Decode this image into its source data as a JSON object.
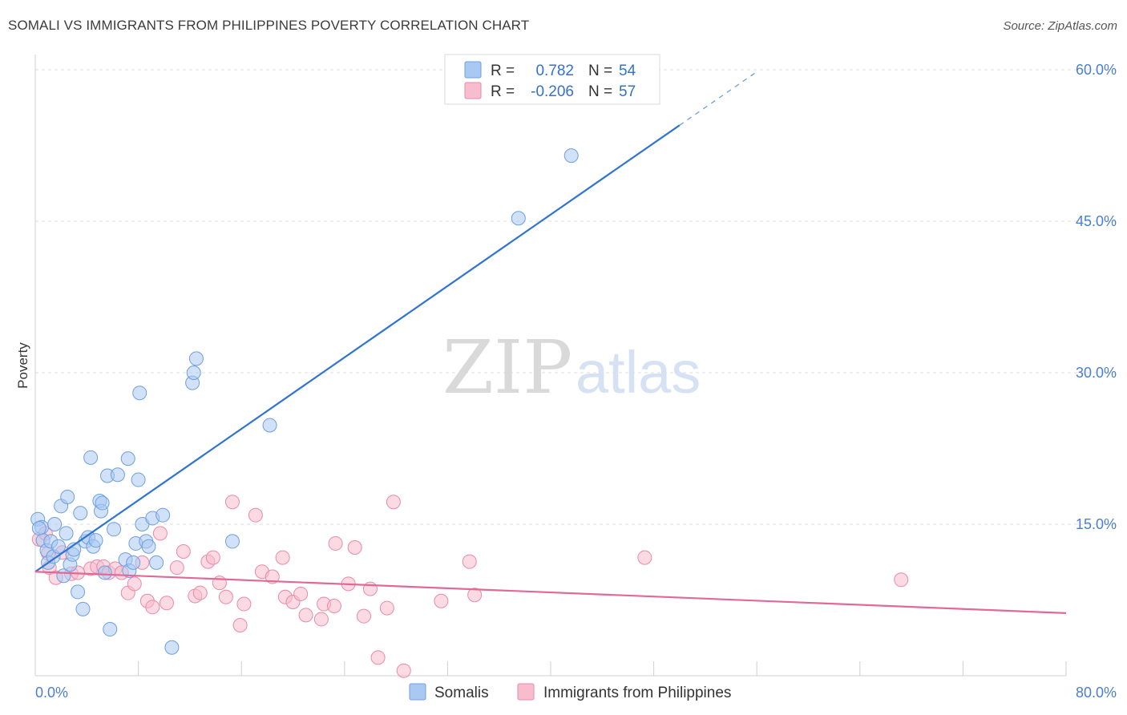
{
  "title": "SOMALI VS IMMIGRANTS FROM PHILIPPINES POVERTY CORRELATION CHART",
  "source": "Source: ZipAtlas.com",
  "watermark": {
    "zip": "ZIP",
    "atlas": "atlas"
  },
  "colors": {
    "somali_fill": "#a9c8f2",
    "somali_stroke": "#6f9fe0",
    "somali_line": "#2f74d0",
    "phil_fill": "#f7bccd",
    "phil_stroke": "#e98aa8",
    "phil_line": "#e06a95",
    "grid": "#dddddd",
    "tick_label": "#4a7fd0"
  },
  "legend": {
    "rows": [
      {
        "r_label": "R =",
        "r_value": "0.782",
        "n_label": "N =",
        "n_value": "54"
      },
      {
        "r_label": "R =",
        "r_value": "-0.206",
        "n_label": "N =",
        "n_value": "57"
      }
    ]
  },
  "bottom_legend": [
    "Somalis",
    "Immigrants from Philippines"
  ],
  "chart_data": {
    "type": "scatter",
    "title": "SOMALI VS IMMIGRANTS FROM PHILIPPINES POVERTY CORRELATION CHART",
    "xlabel": "",
    "ylabel": "Poverty",
    "xlim": [
      0,
      80
    ],
    "ylim": [
      0,
      60
    ],
    "x_tick_labels": [
      "0.0%",
      "80.0%"
    ],
    "y_ticks": [
      15,
      30,
      45,
      60
    ],
    "y_tick_labels": [
      "15.0%",
      "30.0%",
      "45.0%",
      "60.0%"
    ],
    "grid": true,
    "legend_position": "top-center",
    "series": [
      {
        "name": "Somalis",
        "r": 0.782,
        "n": 54,
        "trend": {
          "x0": 0,
          "y0": 10.3,
          "x1": 50,
          "y1": 54.5,
          "dashed_to_x": 56,
          "dashed_to_y": 59.8
        },
        "points": [
          [
            0.2,
            15.5
          ],
          [
            0.5,
            14.7
          ],
          [
            0.6,
            13.4
          ],
          [
            0.9,
            12.4
          ],
          [
            1.0,
            11.2
          ],
          [
            1.2,
            13.3
          ],
          [
            1.4,
            11.8
          ],
          [
            1.5,
            15.0
          ],
          [
            1.8,
            12.8
          ],
          [
            2.0,
            16.8
          ],
          [
            2.2,
            9.9
          ],
          [
            2.4,
            14.1
          ],
          [
            2.5,
            17.7
          ],
          [
            2.7,
            11.0
          ],
          [
            2.9,
            12.0
          ],
          [
            3.0,
            12.5
          ],
          [
            3.3,
            8.3
          ],
          [
            3.5,
            16.1
          ],
          [
            3.7,
            6.6
          ],
          [
            3.9,
            13.3
          ],
          [
            4.1,
            13.7
          ],
          [
            4.3,
            21.6
          ],
          [
            4.5,
            12.8
          ],
          [
            4.7,
            13.4
          ],
          [
            5.0,
            17.3
          ],
          [
            5.1,
            16.3
          ],
          [
            5.2,
            17.1
          ],
          [
            5.4,
            10.2
          ],
          [
            5.6,
            19.8
          ],
          [
            5.8,
            4.6
          ],
          [
            6.1,
            14.5
          ],
          [
            6.4,
            19.9
          ],
          [
            7.0,
            11.5
          ],
          [
            7.2,
            21.5
          ],
          [
            7.3,
            10.4
          ],
          [
            7.6,
            11.2
          ],
          [
            7.8,
            13.1
          ],
          [
            8.0,
            19.4
          ],
          [
            8.1,
            28.0
          ],
          [
            8.3,
            15.0
          ],
          [
            8.6,
            13.3
          ],
          [
            8.8,
            12.8
          ],
          [
            9.1,
            15.6
          ],
          [
            9.4,
            11.2
          ],
          [
            9.9,
            15.9
          ],
          [
            10.6,
            2.8
          ],
          [
            12.2,
            29.0
          ],
          [
            12.3,
            30.0
          ],
          [
            12.5,
            31.4
          ],
          [
            15.3,
            13.3
          ],
          [
            18.2,
            24.8
          ],
          [
            37.5,
            45.3
          ],
          [
            41.6,
            51.5
          ],
          [
            0.3,
            14.6
          ]
        ]
      },
      {
        "name": "Immigrants from Philippines",
        "r": -0.206,
        "n": 57,
        "trend": {
          "x0": 0,
          "y0": 10.3,
          "x1": 80,
          "y1": 6.2
        },
        "points": [
          [
            0.3,
            13.5
          ],
          [
            0.8,
            14.1
          ],
          [
            1.0,
            12.1
          ],
          [
            1.1,
            10.7
          ],
          [
            1.6,
            9.7
          ],
          [
            2.1,
            12.2
          ],
          [
            2.8,
            10.1
          ],
          [
            3.3,
            10.2
          ],
          [
            4.3,
            10.6
          ],
          [
            4.8,
            10.8
          ],
          [
            5.3,
            10.8
          ],
          [
            5.7,
            10.2
          ],
          [
            6.2,
            10.6
          ],
          [
            6.7,
            10.2
          ],
          [
            7.2,
            8.2
          ],
          [
            7.7,
            9.1
          ],
          [
            8.3,
            11.2
          ],
          [
            8.7,
            7.4
          ],
          [
            9.1,
            6.8
          ],
          [
            9.7,
            14.1
          ],
          [
            10.2,
            7.2
          ],
          [
            11.0,
            10.7
          ],
          [
            11.5,
            12.3
          ],
          [
            12.4,
            7.9
          ],
          [
            12.8,
            8.2
          ],
          [
            13.4,
            11.3
          ],
          [
            13.8,
            11.7
          ],
          [
            14.3,
            9.2
          ],
          [
            14.8,
            7.8
          ],
          [
            15.3,
            17.2
          ],
          [
            15.9,
            5.0
          ],
          [
            16.2,
            7.1
          ],
          [
            17.1,
            15.9
          ],
          [
            17.6,
            10.3
          ],
          [
            18.4,
            9.8
          ],
          [
            19.2,
            11.7
          ],
          [
            19.4,
            7.8
          ],
          [
            20.0,
            7.3
          ],
          [
            20.6,
            8.1
          ],
          [
            21.0,
            6.0
          ],
          [
            22.2,
            5.6
          ],
          [
            22.4,
            7.1
          ],
          [
            23.2,
            6.9
          ],
          [
            23.3,
            13.1
          ],
          [
            24.3,
            9.1
          ],
          [
            24.8,
            12.7
          ],
          [
            25.5,
            5.9
          ],
          [
            26.0,
            8.6
          ],
          [
            26.6,
            1.8
          ],
          [
            27.3,
            6.7
          ],
          [
            27.8,
            17.2
          ],
          [
            28.6,
            0.5
          ],
          [
            31.5,
            7.4
          ],
          [
            33.7,
            11.3
          ],
          [
            34.1,
            8.0
          ],
          [
            47.3,
            11.7
          ],
          [
            67.2,
            9.5
          ]
        ]
      }
    ]
  }
}
